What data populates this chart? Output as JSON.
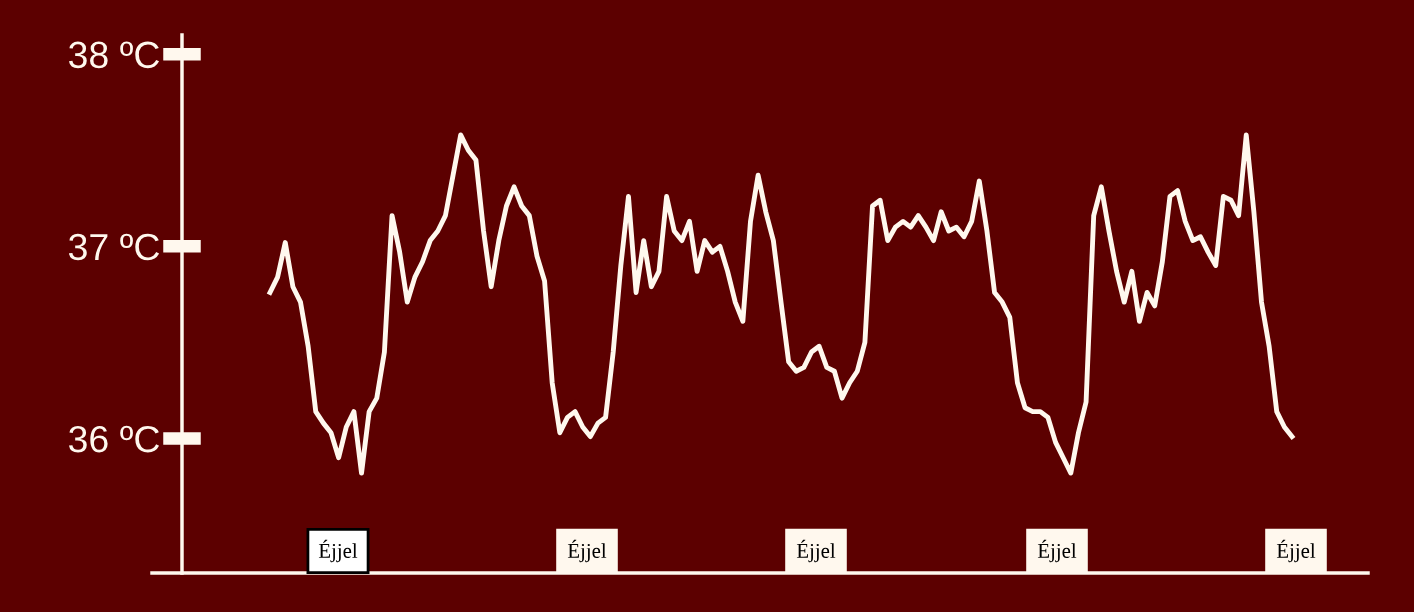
{
  "chart_data": {
    "type": "line",
    "categories": [
      null,
      null,
      null,
      null,
      null,
      null,
      null,
      null,
      null,
      null,
      null,
      null,
      null,
      null,
      null,
      null,
      null,
      null,
      null,
      null,
      null,
      null,
      null,
      null,
      null,
      null,
      null,
      null,
      null,
      null,
      null,
      null,
      null,
      null,
      null,
      null,
      null,
      null,
      null,
      null,
      null,
      null,
      null,
      null,
      null,
      null,
      null,
      null,
      null,
      null,
      null,
      null,
      null,
      null,
      null,
      null,
      null,
      null,
      null,
      null,
      null,
      null,
      null,
      null,
      null,
      null,
      null,
      null,
      null,
      null,
      null,
      null,
      null,
      null,
      null,
      null,
      null,
      null,
      null,
      null,
      null,
      null,
      null,
      null,
      null,
      null,
      null,
      null,
      null,
      null,
      null,
      null,
      null,
      null,
      null,
      null,
      null,
      null,
      null,
      null,
      null,
      null,
      null,
      null,
      null,
      null,
      null,
      null,
      null,
      null,
      null,
      null,
      null,
      null,
      null,
      null,
      null,
      null,
      null,
      null,
      null,
      null,
      null,
      null,
      null,
      null,
      null,
      null,
      null,
      null,
      null,
      null,
      null,
      null,
      null
    ],
    "series": [
      {
        "color": "#fff8ee",
        "values": [
          36.76,
          36.84,
          37.02,
          36.79,
          36.71,
          36.48,
          36.14,
          36.08,
          36.03,
          35.9,
          36.06,
          36.14,
          35.82,
          36.14,
          36.21,
          36.45,
          37.16,
          36.97,
          36.71,
          36.84,
          36.92,
          37.03,
          37.08,
          37.16,
          37.37,
          37.58,
          37.5,
          37.45,
          37.08,
          36.79,
          37.03,
          37.21,
          37.31,
          37.21,
          37.16,
          36.95,
          36.82,
          36.29,
          36.03,
          36.11,
          36.14,
          36.06,
          36.01,
          36.08,
          36.11,
          36.45,
          36.9,
          37.26,
          36.76,
          37.03,
          36.79,
          36.87,
          37.26,
          37.08,
          37.03,
          37.13,
          36.87,
          37.03,
          36.97,
          37.0,
          36.87,
          36.71,
          36.61,
          37.13,
          37.37,
          37.18,
          37.03,
          36.71,
          36.4,
          36.35,
          36.37,
          36.45,
          36.48,
          36.37,
          36.35,
          36.21,
          36.29,
          36.35,
          36.5,
          37.21,
          37.24,
          37.03,
          37.1,
          37.13,
          37.1,
          37.16,
          37.1,
          37.03,
          37.18,
          37.08,
          37.1,
          37.05,
          37.13,
          37.34,
          37.08,
          36.76,
          36.71,
          36.63,
          36.29,
          36.16,
          36.14,
          36.14,
          36.11,
          35.98,
          35.9,
          35.82,
          36.03,
          36.19,
          37.16,
          37.31,
          37.08,
          36.87,
          36.71,
          36.87,
          36.61,
          36.76,
          36.69,
          36.92,
          37.26,
          37.29,
          37.13,
          37.03,
          37.05,
          36.97,
          36.9,
          37.26,
          37.24,
          37.16,
          37.58,
          37.18,
          36.71,
          36.48,
          36.14,
          36.06,
          36.01
        ]
      }
    ],
    "ylim": [
      35.3,
      38.1
    ],
    "yticks": [
      {
        "value": 36,
        "label": "36 ºC"
      },
      {
        "value": 37,
        "label": "37 ºC"
      },
      {
        "value": 38,
        "label": "38 ºC"
      }
    ],
    "tick_labels": "y",
    "grid": false,
    "marker": "none",
    "line_style": "solid",
    "annotations": [
      "Éjjel",
      "Éjjel",
      "Éjjel",
      "Éjjel",
      "Éjjel"
    ]
  }
}
